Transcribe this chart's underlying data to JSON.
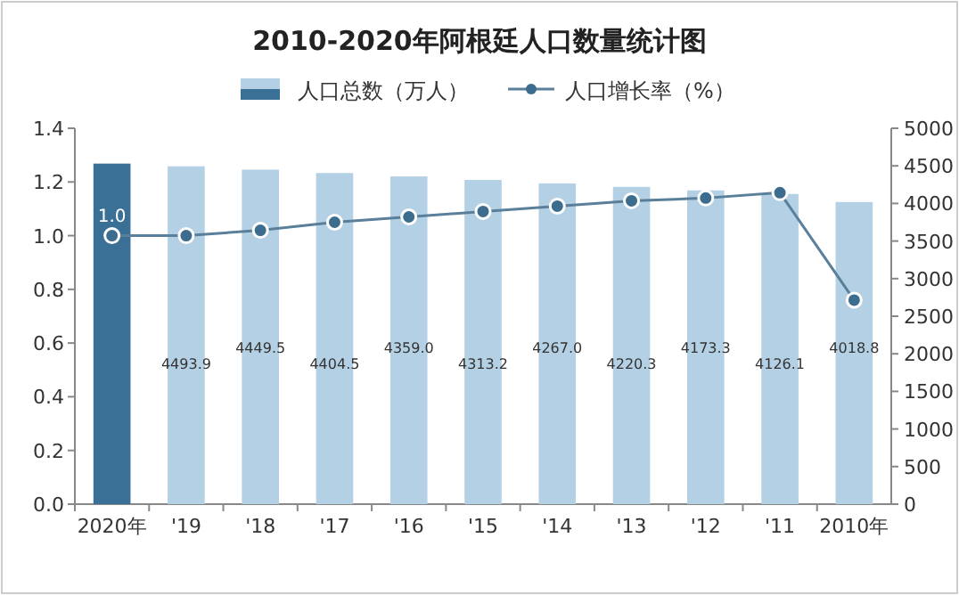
{
  "chart_data": {
    "type": "bar",
    "title": "2010-2020年阿根廷人口数量统计图",
    "categories": [
      "2020年",
      "'19",
      "'18",
      "'17",
      "'16",
      "'15",
      "'14",
      "'13",
      "'12",
      "'11",
      "2010年"
    ],
    "series": [
      {
        "name": "人口总数（万人）",
        "axis": "y2",
        "color": "#b4d0e4",
        "colors": [
          "#3a6f96",
          "#b4d0e4",
          "#b4d0e4",
          "#b4d0e4",
          "#b4d0e4",
          "#b4d0e4",
          "#b4d0e4",
          "#b4d0e4",
          "#b4d0e4",
          "#b4d0e4",
          "#b4d0e4"
        ],
        "values": [
          4530,
          4493.9,
          4449.5,
          4404.5,
          4359.0,
          4313.2,
          4267.0,
          4220.3,
          4173.3,
          4126.1,
          4018.8
        ],
        "value_labels": [
          null,
          "4493.9",
          "4449.5",
          "4404.5",
          "4359.0",
          "4313.2",
          "4267.0",
          "4220.3",
          "4173.3",
          "4126.1",
          "4018.8"
        ]
      },
      {
        "name": "人口增长率（%）",
        "type": "line",
        "color": "#5a7f9a",
        "values": [
          1.0,
          1.0,
          1.02,
          1.05,
          1.07,
          1.09,
          1.11,
          1.13,
          1.14,
          1.16,
          0.76
        ],
        "value_labels": [
          "1.0",
          null,
          null,
          null,
          null,
          null,
          null,
          null,
          null,
          null,
          null
        ]
      }
    ],
    "ylim": [
      0,
      1.4
    ],
    "yticks": [
      {
        "value": 0,
        "label": "0.0"
      },
      {
        "value": 0.2,
        "label": "0.2"
      },
      {
        "value": 0.4,
        "label": "0.4"
      },
      {
        "value": 0.6,
        "label": "0.6"
      },
      {
        "value": 0.8,
        "label": "0.8"
      },
      {
        "value": 1.0,
        "label": "1.0"
      },
      {
        "value": 1.2,
        "label": "1.2"
      },
      {
        "value": 1.4,
        "label": "1.4"
      }
    ],
    "y2lim": [
      0,
      5000
    ],
    "y2ticks": [
      0,
      500,
      1000,
      1500,
      2000,
      2500,
      3000,
      3500,
      4000,
      4500,
      5000
    ],
    "legend": "top",
    "marker": "circle",
    "line_style": "solid"
  }
}
